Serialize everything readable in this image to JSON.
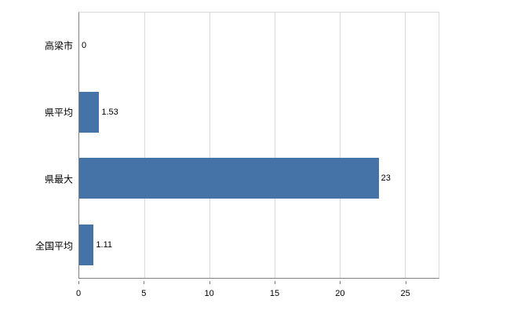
{
  "chart_data": {
    "type": "bar",
    "orientation": "horizontal",
    "title": "",
    "xlabel": "",
    "ylabel": "",
    "categories": [
      "高梁市",
      "県平均",
      "県最大",
      "全国平均"
    ],
    "values": [
      0,
      1.53,
      23,
      1.11
    ],
    "value_labels": [
      "0",
      "1.53",
      "23",
      "1.11"
    ],
    "xlim": [
      0,
      27.6
    ],
    "xticks": [
      0,
      5,
      10,
      15,
      20,
      25
    ],
    "xtick_labels": [
      "0",
      "5",
      "10",
      "15",
      "20",
      "25"
    ],
    "grid": true,
    "legend_position": "none",
    "bar_color": "#4573a7",
    "grid_color": "#d9d9d9",
    "axis_color": "#808080",
    "background_color": "#ffffff"
  }
}
